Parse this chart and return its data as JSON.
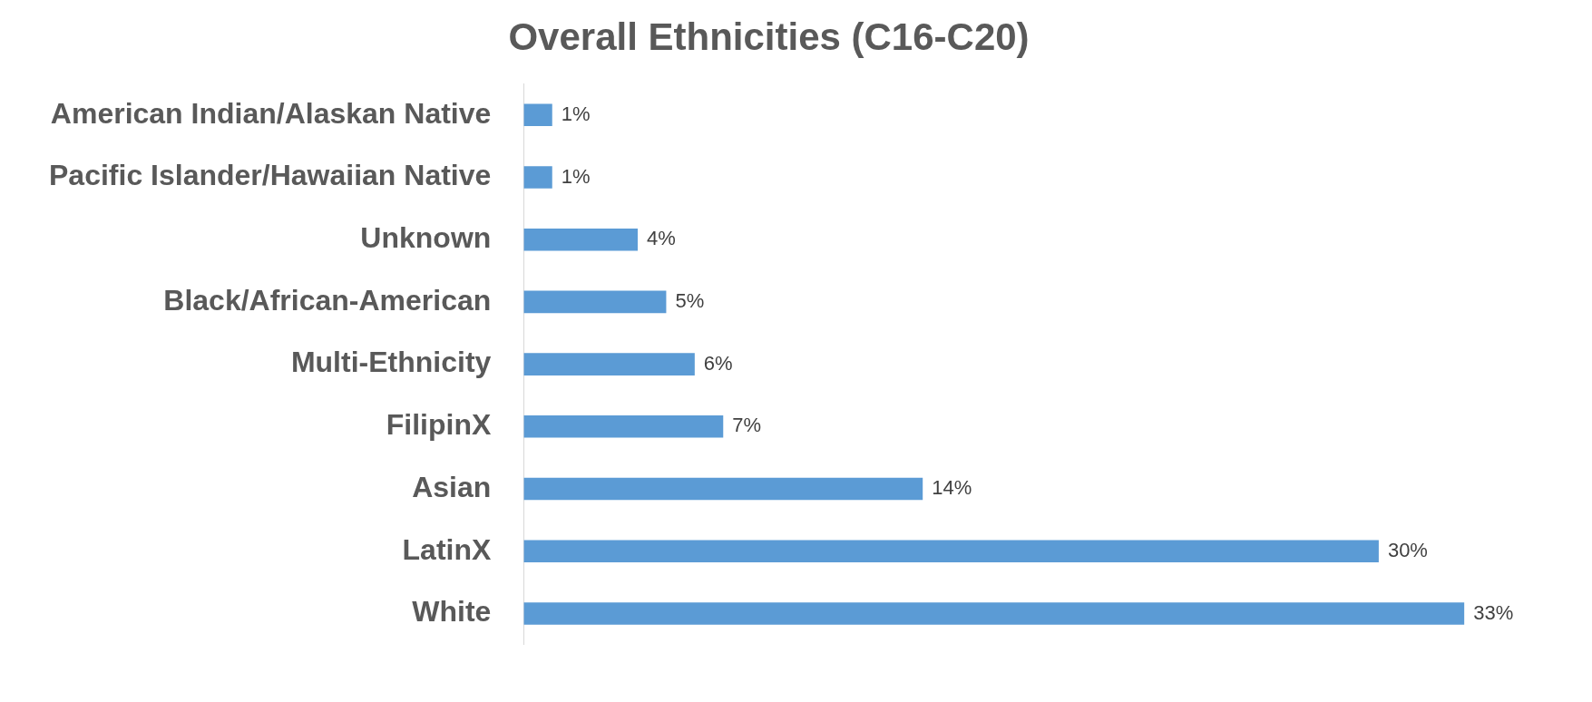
{
  "chart_data": {
    "type": "bar",
    "title": "Overall Ethnicities (C16-C20)",
    "orientation": "horizontal",
    "categories": [
      "American Indian/Alaskan Native",
      "Pacific Islander/Hawaiian Native",
      "Unknown",
      "Black/African-American",
      "Multi-Ethnicity",
      "FilipinX",
      "Asian",
      "LatinX",
      "White"
    ],
    "values": [
      1,
      1,
      4,
      5,
      6,
      7,
      14,
      30,
      33
    ],
    "value_labels": [
      "1%",
      "1%",
      "4%",
      "5%",
      "6%",
      "7%",
      "14%",
      "30%",
      "33%"
    ],
    "color": "#5b9bd5",
    "grid": false,
    "legend": false
  }
}
